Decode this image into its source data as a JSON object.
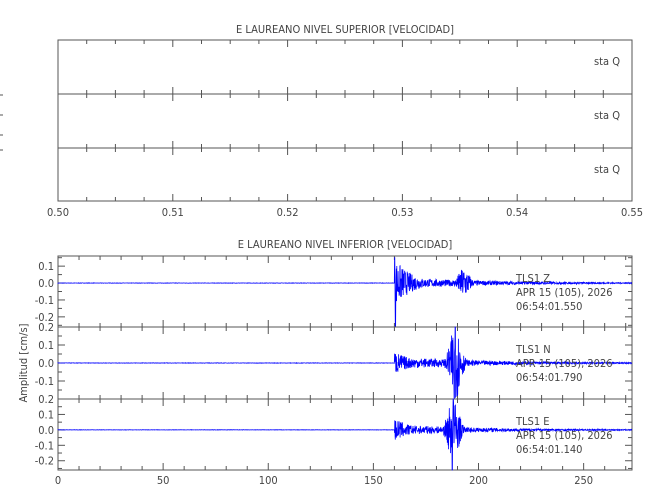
{
  "chart_data": [
    {
      "type": "line",
      "title": "E LAUREANO NIVEL SUPERIOR [VELOCIDAD]",
      "xlim": [
        0.5,
        0.55
      ],
      "xticks": [
        "0.50",
        "0.51",
        "0.52",
        "0.53",
        "0.54",
        "0.55"
      ],
      "traces": [
        {
          "label": "sta  Q"
        },
        {
          "label": "sta  Q"
        },
        {
          "label": "sta  Q"
        }
      ]
    },
    {
      "type": "line",
      "title": "E LAUREANO NIVEL INFERIOR [VELOCIDAD]",
      "ylabel": "Amplitud  [cm/s]",
      "xlim": [
        0,
        273
      ],
      "xticks": [
        "0",
        "50",
        "100",
        "150",
        "200",
        "250"
      ],
      "color": "#0000ff",
      "traces": [
        {
          "station": "TLS1",
          "component": "Z",
          "date": "APR 15 (105), 2026",
          "time": "06:54:01.550",
          "ylim": [
            -0.26,
            0.16
          ],
          "yticks": [
            "0.1",
            "0.0",
            "-0.1",
            "-0.2"
          ],
          "onset": 160,
          "p_peak": 0.15,
          "s_time": 193,
          "s_peak": 0.09,
          "min": -0.26
        },
        {
          "station": "TLS1",
          "component": "N",
          "date": "APR 15 (105), 2026",
          "time": "06:54:01.790",
          "ylim": [
            -0.2,
            0.2
          ],
          "yticks": [
            "0.2",
            "0.1",
            "0.0",
            "-0.1"
          ],
          "onset": 160,
          "p_peak": 0.07,
          "s_time": 189,
          "s_peak": 0.2,
          "min": -0.2
        },
        {
          "station": "TLS1",
          "component": "E",
          "date": "APR 15 (105), 2026",
          "time": "06:54:01.140",
          "ylim": [
            -0.26,
            0.2
          ],
          "yticks": [
            "0.2",
            "0.1",
            "0.0",
            "-0.1",
            "-0.2"
          ],
          "onset": 160,
          "p_peak": 0.08,
          "s_time": 188,
          "s_peak": 0.2,
          "min": -0.26
        }
      ]
    }
  ]
}
